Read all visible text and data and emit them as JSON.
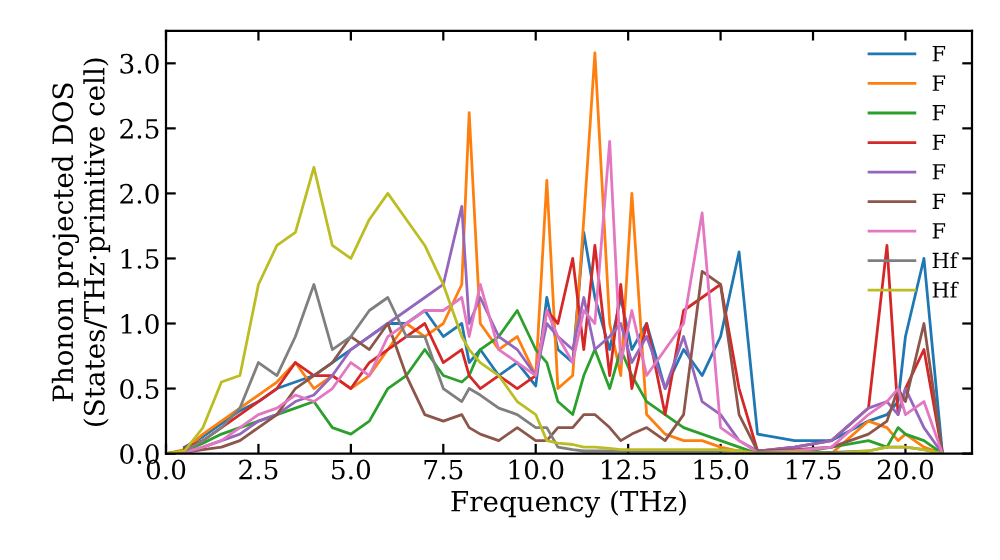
{
  "chart_data": {
    "type": "line",
    "xlabel": "Frequency (THz)",
    "ylabel": "Phonon projected DOS\n(States/THz·primitive cell)",
    "xlim": [
      0,
      21.8
    ],
    "ylim": [
      0,
      3.25
    ],
    "xticks": [
      {
        "value": 0,
        "label": "0.0"
      },
      {
        "value": 2.5,
        "label": "2.5"
      },
      {
        "value": 5,
        "label": "5.0"
      },
      {
        "value": 7.5,
        "label": "7.5"
      },
      {
        "value": 10,
        "label": "10.0"
      },
      {
        "value": 12.5,
        "label": "12.5"
      },
      {
        "value": 15,
        "label": "15.0"
      },
      {
        "value": 17.5,
        "label": "17.5"
      },
      {
        "value": 20,
        "label": "20.0"
      }
    ],
    "yticks": [
      {
        "value": 0,
        "label": "0.0"
      },
      {
        "value": 0.5,
        "label": "0.5"
      },
      {
        "value": 1,
        "label": "1.0"
      },
      {
        "value": 1.5,
        "label": "1.5"
      },
      {
        "value": 2,
        "label": "2.0"
      },
      {
        "value": 2.5,
        "label": "2.5"
      },
      {
        "value": 3,
        "label": "3.0"
      }
    ],
    "grid": false,
    "legend": "top right",
    "marker": "none",
    "line_style": "solid",
    "x": [
      0,
      0.5,
      1,
      1.5,
      2,
      2.5,
      3,
      3.5,
      4,
      4.5,
      5,
      5.5,
      6,
      6.5,
      7,
      7.5,
      8,
      8.2,
      8.5,
      9,
      9.5,
      10,
      10.3,
      10.6,
      11,
      11.3,
      11.6,
      12,
      12.3,
      12.6,
      13,
      13.5,
      14,
      14.5,
      15,
      15.5,
      16,
      17,
      18,
      19,
      19.5,
      19.8,
      20,
      20.5,
      21
    ],
    "series": [
      {
        "name": "F",
        "color": "#1f77b4",
        "values": [
          null,
          0.05,
          0.13,
          0.23,
          0.33,
          0.4,
          0.5,
          0.55,
          0.6,
          0.7,
          0.8,
          0.9,
          1.0,
          1.0,
          1.1,
          0.9,
          1.0,
          0.7,
          0.8,
          0.6,
          0.7,
          0.52,
          1.2,
          0.8,
          0.7,
          1.7,
          1.2,
          0.8,
          1.2,
          0.8,
          1.0,
          0.5,
          0.8,
          0.6,
          0.9,
          1.55,
          0.15,
          0.1,
          0.1,
          0.25,
          0.3,
          0.4,
          0.9,
          1.5,
          0
        ]
      },
      {
        "name": "F",
        "color": "#ff7f0e",
        "values": [
          0,
          0.03,
          0.15,
          0.25,
          0.35,
          0.45,
          0.55,
          0.7,
          0.5,
          0.6,
          0.5,
          0.6,
          0.8,
          1.0,
          0.9,
          1.0,
          1.3,
          2.62,
          1.0,
          0.8,
          0.9,
          0.6,
          2.1,
          0.5,
          0.6,
          1.8,
          3.08,
          1.0,
          0.6,
          2.0,
          0.3,
          0.15,
          0.1,
          0.1,
          0.05,
          0.02,
          0,
          0,
          0,
          0.25,
          0.2,
          0.1,
          0.15,
          0.05,
          0
        ]
      },
      {
        "name": "F",
        "color": "#2ca02c",
        "values": [
          0,
          0.02,
          0.08,
          0.15,
          0.2,
          0.25,
          0.3,
          0.35,
          0.4,
          0.2,
          0.15,
          0.25,
          0.5,
          0.6,
          0.8,
          0.6,
          0.55,
          0.6,
          0.8,
          0.9,
          1.1,
          0.8,
          0.7,
          0.4,
          0.3,
          0.6,
          0.8,
          0.5,
          0.8,
          0.6,
          0.4,
          0.3,
          0.2,
          0.15,
          0.1,
          0.05,
          0,
          0,
          0.05,
          0.1,
          0.05,
          0.2,
          0.15,
          0.1,
          0
        ]
      },
      {
        "name": "F",
        "color": "#d62728",
        "values": [
          null,
          0.04,
          0.1,
          0.2,
          0.3,
          0.4,
          0.5,
          0.7,
          0.6,
          0.6,
          0.5,
          0.7,
          0.8,
          0.9,
          1.0,
          0.7,
          0.8,
          0.6,
          0.5,
          0.6,
          0.5,
          0.6,
          1.1,
          1.0,
          1.5,
          0.8,
          1.6,
          0.6,
          1.3,
          0.5,
          1.0,
          0.3,
          1.1,
          1.2,
          1.3,
          0.5,
          0.02,
          0.05,
          0.1,
          0.35,
          1.6,
          0.3,
          0.5,
          0.8,
          0
        ]
      },
      {
        "name": "F",
        "color": "#9467bd",
        "values": [
          0,
          0.01,
          0.05,
          0.1,
          0.15,
          0.25,
          0.3,
          0.4,
          0.45,
          0.6,
          0.8,
          0.9,
          1.0,
          1.1,
          1.2,
          1.3,
          1.9,
          1.0,
          1.2,
          0.9,
          0.8,
          0.6,
          1.0,
          0.9,
          0.8,
          1.2,
          0.8,
          0.9,
          1.0,
          0.7,
          0.9,
          0.5,
          0.9,
          0.4,
          0.3,
          0.1,
          0.02,
          0.05,
          0.1,
          0.35,
          0.4,
          0.3,
          0.5,
          0.2,
          0
        ]
      },
      {
        "name": "F",
        "color": "#8c564b",
        "values": [
          0,
          0.01,
          0.03,
          0.05,
          0.1,
          0.2,
          0.3,
          0.5,
          0.6,
          0.7,
          0.9,
          0.8,
          1.0,
          0.6,
          0.3,
          0.25,
          0.3,
          0.2,
          0.15,
          0.1,
          0.2,
          0.1,
          0.1,
          0.2,
          0.2,
          0.3,
          0.3,
          0.2,
          0.1,
          0.15,
          0.2,
          0.1,
          0.3,
          1.4,
          1.3,
          0.3,
          0.02,
          0.03,
          0.05,
          0.15,
          0.25,
          0.5,
          0.4,
          1.0,
          0
        ]
      },
      {
        "name": "F",
        "color": "#e377c2",
        "values": [
          0,
          0.01,
          0.05,
          0.1,
          0.2,
          0.3,
          0.35,
          0.45,
          0.4,
          0.5,
          0.7,
          0.6,
          0.9,
          1.0,
          1.1,
          1.1,
          1.2,
          0.9,
          1.3,
          0.8,
          0.7,
          0.6,
          1.1,
          0.9,
          0.7,
          1.1,
          1.0,
          2.4,
          0.7,
          1.1,
          0.6,
          0.8,
          1.0,
          1.85,
          0.2,
          0.1,
          0.01,
          0.02,
          0.05,
          0.3,
          0.4,
          0.5,
          0.3,
          0.4,
          0
        ]
      },
      {
        "name": "Hf",
        "color": "#7f7f7f",
        "values": [
          0,
          0.02,
          0.1,
          0.2,
          0.35,
          0.7,
          0.6,
          0.9,
          1.3,
          0.8,
          0.9,
          1.1,
          1.2,
          0.9,
          0.9,
          0.5,
          0.4,
          0.5,
          0.45,
          0.35,
          0.3,
          0.2,
          0.2,
          0.05,
          0.03,
          0.02,
          0.02,
          0.02,
          0.02,
          0.02,
          0.02,
          0.02,
          0.02,
          0.02,
          0.02,
          0.02,
          0.01,
          0.01,
          0.01,
          0.02,
          0.05,
          0.05,
          0.05,
          0.03,
          0
        ]
      },
      {
        "name": "Hf",
        "color": "#bcbd22",
        "values": [
          0,
          0.02,
          0.2,
          0.55,
          0.6,
          1.3,
          1.6,
          1.7,
          2.2,
          1.6,
          1.5,
          1.8,
          2.0,
          1.8,
          1.6,
          1.3,
          0.9,
          0.8,
          0.7,
          0.6,
          0.4,
          0.3,
          0.1,
          0.08,
          0.07,
          0.05,
          0.05,
          0.04,
          0.03,
          0.03,
          0.03,
          0.03,
          0.03,
          0.03,
          0.03,
          0.02,
          0,
          0.01,
          0,
          0.02,
          0.05,
          0.05,
          0.05,
          0.03,
          0
        ]
      }
    ]
  }
}
